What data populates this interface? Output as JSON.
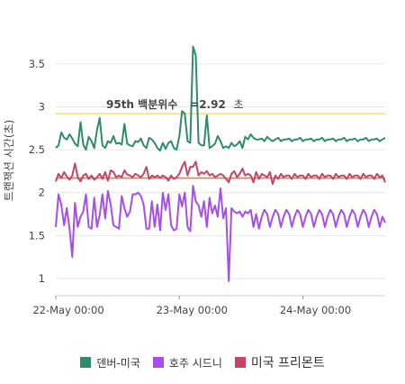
{
  "chart_data": {
    "type": "line",
    "title": "",
    "ylabel": "트랜잭션 시간(초)",
    "xlabel": "",
    "ylim": [
      0.8,
      3.95
    ],
    "yticks": [
      "1",
      "1.5",
      "2",
      "2.5",
      "3",
      "3.5"
    ],
    "xticks": [
      "22-May 00:00",
      "23-May 00:00",
      "24-May 00:00"
    ],
    "grid": true,
    "legend_position": "bottom",
    "annotation": {
      "label": "95th 백분위수",
      "value_text": "=2.92",
      "unit": "초",
      "value": 2.92,
      "color": "#e8e48a"
    },
    "threshold_line": {
      "value": 2.17,
      "color": "#e67e3c"
    },
    "x": [
      0,
      1,
      2,
      3,
      4,
      5,
      6,
      7,
      8,
      9,
      10,
      11,
      12,
      13,
      14,
      15,
      16,
      17,
      18,
      19,
      20,
      21,
      22,
      23,
      24,
      25,
      26,
      27,
      28,
      29,
      30,
      31,
      32,
      33,
      34,
      35,
      36,
      37,
      38,
      39,
      40,
      41,
      42,
      43,
      44,
      45,
      46,
      47,
      48,
      49,
      50,
      51,
      52,
      53,
      54,
      55,
      56,
      57,
      58,
      59,
      60,
      61,
      62,
      63,
      64,
      65,
      66,
      67,
      68,
      69,
      70,
      71,
      72,
      73,
      74,
      75,
      76,
      77,
      78,
      79,
      80,
      81,
      82,
      83,
      84,
      85,
      86,
      87,
      88,
      89,
      90,
      91,
      92,
      93,
      94,
      95,
      96,
      97,
      98,
      99,
      100,
      101,
      102,
      103,
      104,
      105,
      106,
      107,
      108,
      109,
      110,
      111,
      112,
      113,
      114,
      115,
      116,
      117,
      118,
      119,
      120
    ],
    "series": [
      {
        "name": "덴버-미국",
        "color": "#2e8b6e",
        "values": [
          2.52,
          2.55,
          2.7,
          2.64,
          2.62,
          2.68,
          2.63,
          2.57,
          2.54,
          2.82,
          2.56,
          2.5,
          2.65,
          2.6,
          2.52,
          2.73,
          2.87,
          2.55,
          2.52,
          2.6,
          2.58,
          2.66,
          2.57,
          2.58,
          2.56,
          2.8,
          2.57,
          2.55,
          2.54,
          2.6,
          2.59,
          2.63,
          2.55,
          2.52,
          2.64,
          2.62,
          2.58,
          2.52,
          2.49,
          2.58,
          2.51,
          2.58,
          2.6,
          2.52,
          2.5,
          2.66,
          2.95,
          2.92,
          2.6,
          2.58,
          3.7,
          3.6,
          2.58,
          2.55,
          2.55,
          2.9,
          2.52,
          2.54,
          2.57,
          2.66,
          2.6,
          2.52,
          2.54,
          2.52,
          2.58,
          2.54,
          2.56,
          2.6,
          2.52,
          2.65,
          2.62,
          2.68,
          2.64,
          2.62,
          2.62,
          2.63,
          2.6,
          2.65,
          2.62,
          2.6,
          2.62,
          2.64,
          2.6,
          2.62,
          2.62,
          2.63,
          2.6,
          2.62,
          2.62,
          2.64,
          2.6,
          2.62,
          2.62,
          2.63,
          2.6,
          2.62,
          2.62,
          2.64,
          2.6,
          2.62,
          2.62,
          2.63,
          2.6,
          2.62,
          2.62,
          2.64,
          2.6,
          2.62,
          2.62,
          2.63,
          2.6,
          2.62,
          2.62,
          2.64,
          2.6,
          2.62,
          2.62,
          2.63,
          2.6,
          2.62,
          2.64
        ]
      },
      {
        "name": "호주 시드니",
        "color": "#a64fe8",
        "values": [
          1.6,
          1.98,
          1.86,
          1.62,
          1.82,
          1.58,
          1.25,
          1.88,
          1.6,
          1.72,
          1.78,
          1.98,
          1.6,
          1.58,
          1.94,
          1.6,
          1.74,
          1.98,
          1.7,
          2.02,
          1.86,
          1.62,
          1.6,
          1.58,
          1.96,
          1.82,
          1.72,
          1.78,
          1.98,
          1.98,
          2.0,
          1.96,
          1.86,
          1.58,
          1.58,
          1.9,
          1.6,
          1.86,
          1.56,
          2.0,
          1.8,
          1.98,
          1.62,
          1.56,
          1.58,
          1.98,
          1.84,
          2.0,
          1.6,
          1.55,
          2.08,
          1.9,
          1.85,
          1.72,
          1.9,
          1.6,
          1.94,
          1.76,
          1.85,
          1.72,
          2.05,
          1.7,
          1.82,
          0.97,
          1.82,
          1.78,
          1.76,
          1.78,
          1.72,
          1.78,
          1.76,
          1.8,
          1.6,
          1.75,
          1.58,
          1.72,
          1.8,
          1.75,
          1.6,
          1.72,
          1.8,
          1.75,
          1.6,
          1.72,
          1.8,
          1.75,
          1.6,
          1.72,
          1.8,
          1.75,
          1.6,
          1.72,
          1.8,
          1.75,
          1.6,
          1.72,
          1.8,
          1.75,
          1.6,
          1.72,
          1.8,
          1.75,
          1.6,
          1.72,
          1.8,
          1.75,
          1.6,
          1.72,
          1.8,
          1.75,
          1.6,
          1.72,
          1.8,
          1.75,
          1.6,
          1.72,
          1.8,
          1.75,
          1.6,
          1.72,
          1.65
        ]
      },
      {
        "name": "미국 프리몬트",
        "color": "#c44569",
        "values": [
          2.13,
          2.22,
          2.17,
          2.24,
          2.19,
          2.15,
          2.2,
          2.34,
          2.18,
          2.13,
          2.2,
          2.22,
          2.16,
          2.2,
          2.15,
          2.18,
          2.22,
          2.16,
          2.24,
          2.14,
          2.26,
          2.24,
          2.18,
          2.2,
          2.18,
          2.26,
          2.21,
          2.2,
          2.18,
          2.22,
          2.2,
          2.18,
          2.22,
          2.3,
          2.16,
          2.2,
          2.18,
          2.2,
          2.17,
          2.2,
          2.18,
          2.14,
          2.2,
          2.16,
          2.18,
          2.22,
          2.3,
          2.36,
          2.2,
          2.3,
          2.3,
          2.36,
          2.2,
          2.24,
          2.22,
          2.25,
          2.2,
          2.22,
          2.18,
          2.2,
          2.22,
          2.2,
          2.16,
          2.12,
          2.22,
          2.25,
          2.18,
          2.22,
          2.28,
          2.2,
          2.22,
          2.2,
          2.12,
          2.24,
          2.16,
          2.22,
          2.2,
          2.18,
          2.24,
          2.1,
          2.2,
          2.16,
          2.22,
          2.18,
          2.2,
          2.2,
          2.16,
          2.22,
          2.18,
          2.2,
          2.2,
          2.16,
          2.22,
          2.18,
          2.2,
          2.2,
          2.16,
          2.22,
          2.18,
          2.2,
          2.2,
          2.16,
          2.22,
          2.18,
          2.2,
          2.2,
          2.16,
          2.22,
          2.18,
          2.2,
          2.2,
          2.16,
          2.22,
          2.18,
          2.2,
          2.2,
          2.16,
          2.22,
          2.18,
          2.2,
          2.12
        ]
      }
    ]
  }
}
